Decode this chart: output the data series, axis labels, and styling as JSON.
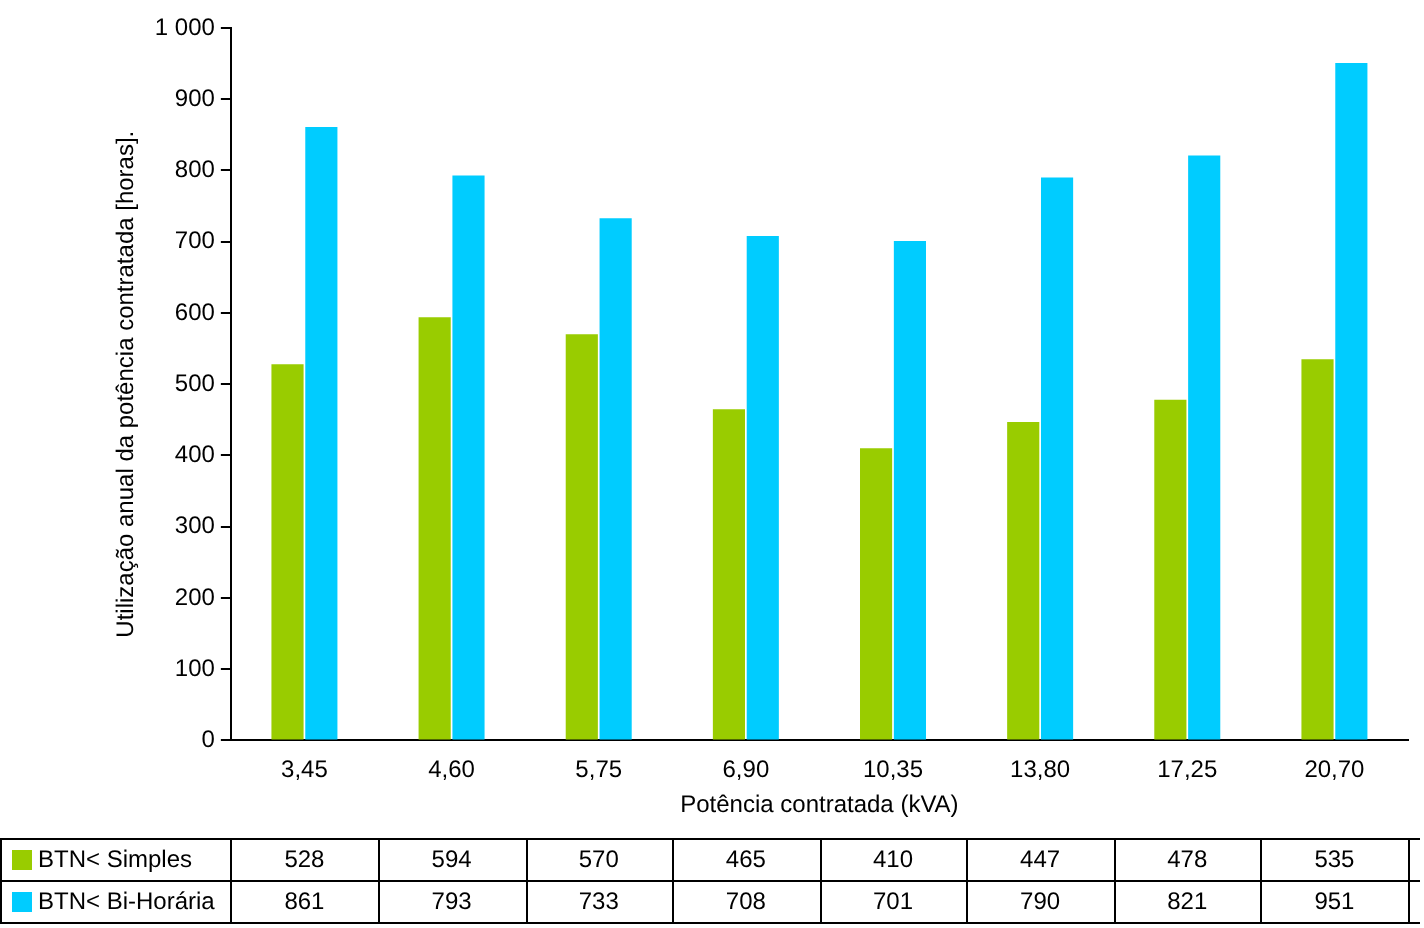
{
  "chart_data": {
    "type": "bar",
    "xlabel": "Potência contratada (kVA)",
    "ylabel": "Utilização anual da potência contratada [horas].",
    "categories": [
      "3,45",
      "4,60",
      "5,75",
      "6,90",
      "10,35",
      "13,80",
      "17,25",
      "20,70"
    ],
    "series": [
      {
        "name": "BTN< Simples",
        "color": "#99cc00",
        "values": [
          528,
          594,
          570,
          465,
          410,
          447,
          478,
          535
        ]
      },
      {
        "name": "BTN< Bi-Horária",
        "color": "#00ccff",
        "values": [
          861,
          793,
          733,
          708,
          701,
          790,
          821,
          951
        ]
      }
    ],
    "ylim": [
      0,
      1000
    ],
    "yticks": [
      0,
      100,
      200,
      300,
      400,
      500,
      600,
      700,
      800,
      900,
      {
        "value": 1000,
        "label": "1 000"
      }
    ],
    "grid": false,
    "legend": "bottom",
    "data_labels": true
  }
}
